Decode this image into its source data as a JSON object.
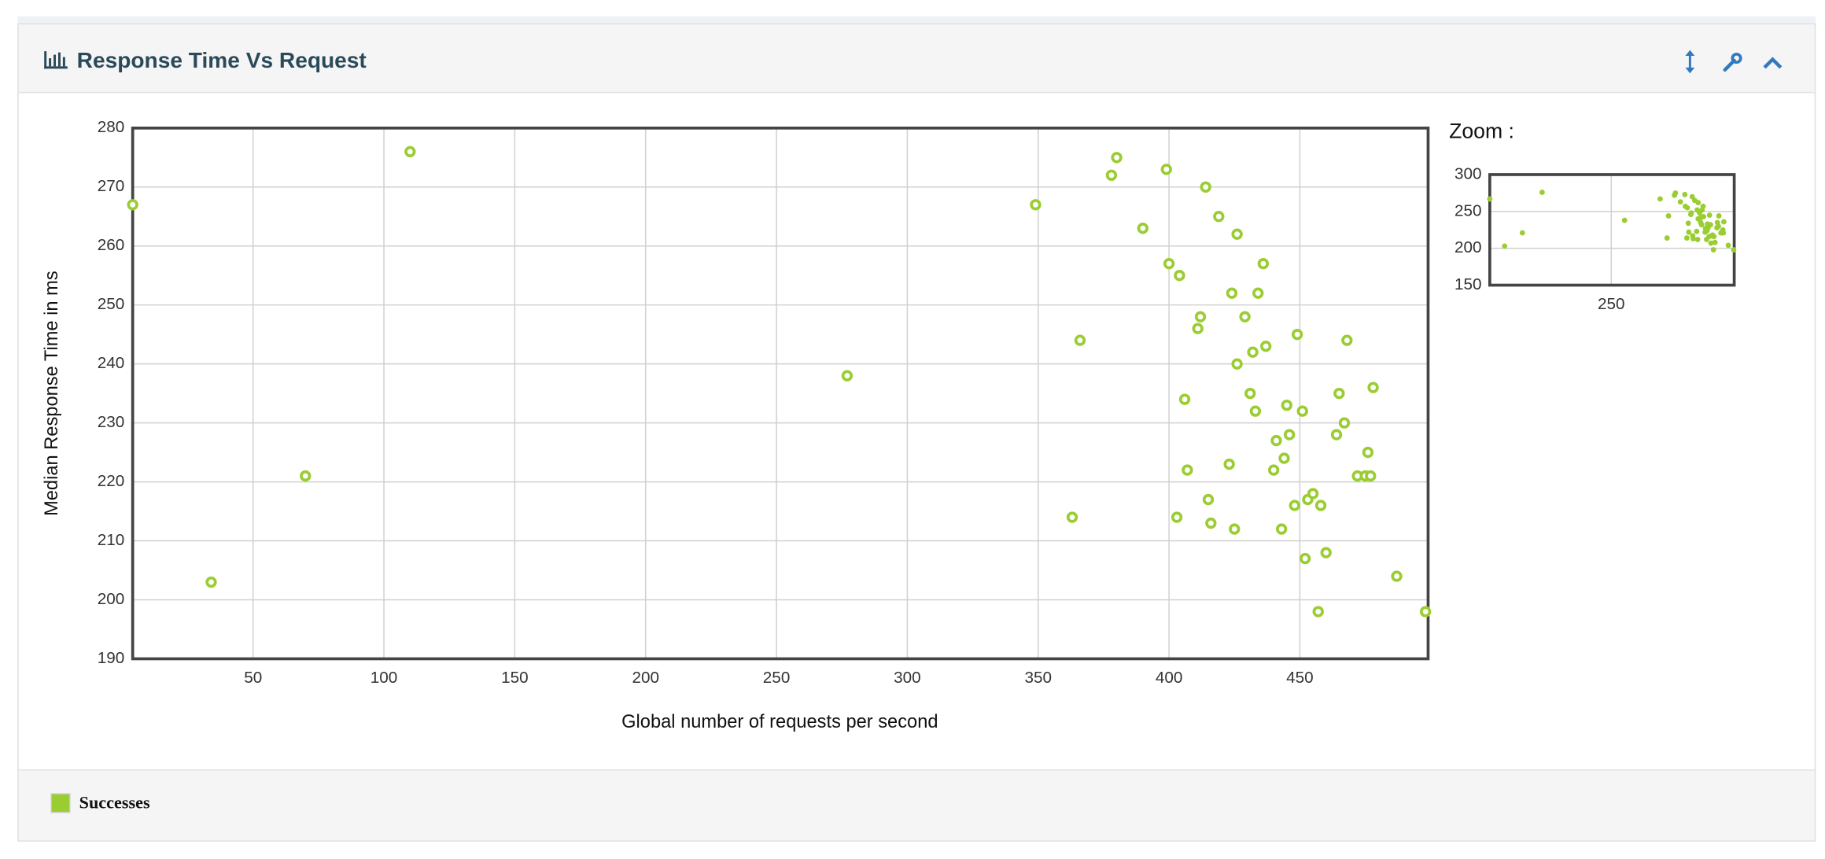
{
  "panel": {
    "title": "Response Time Vs Request"
  },
  "chart_data": {
    "type": "scatter",
    "x_label": "Global number of requests per second",
    "y_label": "Median Response Time in ms",
    "series": [
      {
        "name": "Successes",
        "color": "#9acd32",
        "x": [
          4,
          34,
          70,
          110,
          277,
          349,
          363,
          366,
          378,
          380,
          390,
          399,
          400,
          404,
          403,
          406,
          407,
          412,
          411,
          414,
          415,
          416,
          419,
          423,
          424,
          426,
          425,
          426,
          429,
          431,
          432,
          433,
          434,
          436,
          437,
          440,
          441,
          443,
          444,
          445,
          446,
          448,
          449,
          451,
          452,
          453,
          455,
          457,
          458,
          460,
          464,
          465,
          467,
          468,
          472,
          475,
          476,
          477,
          478,
          487,
          498
        ],
        "values": [
          267,
          203,
          221,
          276,
          238,
          267,
          214,
          244,
          272,
          275,
          263,
          273,
          257,
          255,
          214,
          234,
          222,
          248,
          246,
          270,
          217,
          213,
          265,
          223,
          252,
          240,
          212,
          262,
          248,
          235,
          242,
          232,
          252,
          257,
          243,
          222,
          227,
          212,
          224,
          233,
          228,
          216,
          245,
          232,
          207,
          217,
          218,
          198,
          216,
          208,
          228,
          235,
          230,
          244,
          221,
          221,
          225,
          221,
          236,
          204,
          198
        ]
      }
    ],
    "xlim": [
      4,
      499
    ],
    "ylim": [
      190,
      280
    ],
    "xticks": [
      50,
      100,
      150,
      200,
      250,
      300,
      350,
      400,
      450
    ],
    "yticks": [
      190,
      200,
      210,
      220,
      230,
      240,
      250,
      260,
      270,
      280
    ],
    "grid": true
  },
  "zoom": {
    "label": "Zoom :",
    "xlim": [
      4,
      499
    ],
    "ylim": [
      150,
      300
    ],
    "xticks": [
      250
    ],
    "yticks": [
      150,
      200,
      250,
      300
    ]
  }
}
